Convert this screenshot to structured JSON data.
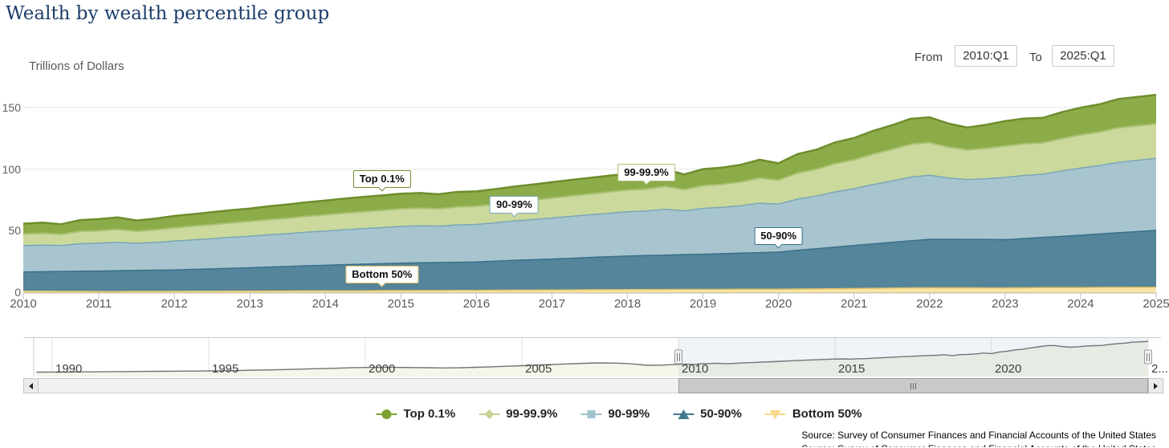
{
  "header": {
    "title": "Wealth by wealth percentile group"
  },
  "range_selector": {
    "from_label": "From",
    "from_value": "2010:Q1",
    "to_label": "To",
    "to_value": "2025:Q1"
  },
  "chart_data": {
    "type": "area",
    "stacked": true,
    "title": "Wealth by wealth percentile group",
    "ylabel": "Trillions of Dollars",
    "xlabel": "",
    "x_start": 2010.0,
    "x_step": 0.25,
    "x_ticks": [
      2010,
      2011,
      2012,
      2013,
      2014,
      2015,
      2016,
      2017,
      2018,
      2019,
      2020,
      2021,
      2022,
      2023,
      2024,
      2025
    ],
    "y_ticks": [
      0,
      50,
      100,
      150
    ],
    "ylim": [
      0,
      164
    ],
    "grid": "horizontal",
    "series": [
      {
        "name": "Bottom 50%",
        "color": "#f8e5a4",
        "line_color": "#e2c368",
        "line_width": 1.5,
        "values": [
          0.8,
          0.8,
          0.7,
          0.7,
          0.6,
          0.6,
          0.7,
          0.7,
          0.7,
          0.8,
          0.8,
          0.9,
          0.9,
          1.0,
          1.0,
          1.1,
          1.1,
          1.2,
          1.2,
          1.3,
          1.3,
          1.4,
          1.4,
          1.5,
          1.5,
          1.6,
          1.7,
          1.7,
          1.8,
          1.9,
          2.0,
          2.0,
          2.1,
          2.2,
          2.2,
          2.3,
          2.3,
          2.3,
          2.4,
          2.4,
          2.4,
          2.6,
          2.7,
          2.9,
          3.0,
          3.2,
          3.3,
          3.5,
          3.6,
          3.6,
          3.6,
          3.5,
          3.5,
          3.6,
          3.7,
          3.7,
          3.8,
          3.9,
          3.9,
          4.0,
          4.0
        ]
      },
      {
        "name": "50-90%",
        "color": "#54859a",
        "line_color": "#3a7089",
        "line_width": 1.5,
        "values": [
          15.7,
          15.9,
          16.2,
          16.4,
          16.6,
          16.8,
          17.0,
          17.2,
          17.4,
          17.8,
          18.2,
          18.6,
          19.0,
          19.5,
          19.9,
          20.4,
          20.8,
          21.2,
          21.6,
          21.9,
          22.3,
          22.5,
          22.7,
          22.9,
          23.1,
          23.6,
          24.2,
          24.7,
          25.2,
          25.7,
          26.3,
          26.8,
          27.3,
          27.6,
          28.0,
          28.3,
          28.6,
          29.0,
          29.4,
          29.8,
          30.2,
          31.4,
          32.6,
          33.8,
          35.0,
          36.1,
          37.2,
          38.3,
          39.4,
          39.4,
          39.3,
          39.3,
          39.2,
          40.0,
          40.9,
          41.7,
          42.5,
          43.4,
          44.4,
          45.3,
          46.2
        ]
      },
      {
        "name": "90-99%",
        "color": "#a8c5cf",
        "line_color": "#79a7b7",
        "line_width": 1.5,
        "values": [
          21.3,
          21.6,
          21.0,
          22.3,
          22.6,
          23.1,
          22.0,
          22.6,
          23.4,
          24.0,
          24.5,
          25.1,
          25.6,
          26.2,
          26.7,
          27.3,
          27.8,
          28.3,
          28.8,
          29.3,
          29.8,
          30.0,
          29.6,
          30.3,
          30.5,
          31.2,
          31.9,
          32.6,
          33.3,
          34.0,
          34.6,
          35.3,
          35.9,
          36.2,
          37.2,
          35.5,
          37.2,
          37.6,
          38.5,
          40.1,
          38.9,
          41.6,
          42.8,
          44.8,
          46.0,
          48.1,
          49.8,
          51.7,
          52.0,
          49.8,
          48.6,
          49.4,
          50.5,
          51.2,
          51.3,
          53.1,
          54.5,
          55.5,
          57.2,
          57.8,
          58.5
        ]
      },
      {
        "name": "99-99.9%",
        "color": "#cbd99d",
        "line_color": "#a9c171",
        "line_width": 2,
        "values": [
          9.4,
          9.6,
          9.1,
          10.0,
          10.2,
          10.6,
          9.8,
          10.2,
          10.8,
          11.1,
          11.4,
          11.7,
          12.0,
          12.3,
          12.6,
          12.9,
          13.2,
          13.5,
          13.8,
          14.0,
          14.3,
          14.4,
          14.1,
          14.6,
          14.7,
          15.1,
          15.5,
          15.8,
          16.2,
          16.6,
          16.9,
          17.3,
          17.6,
          17.8,
          18.5,
          17.2,
          18.4,
          18.7,
          19.3,
          20.4,
          19.5,
          21.2,
          21.7,
          23.0,
          23.5,
          24.7,
          25.6,
          26.7,
          26.5,
          25.0,
          24.0,
          24.6,
          25.5,
          25.7,
          25.4,
          26.3,
          27.0,
          27.3,
          28.0,
          28.0,
          28.0
        ]
      },
      {
        "name": "Top 0.1%",
        "color": "#8cac49",
        "line_color": "#6e8e2e",
        "line_width": 2.5,
        "values": [
          8.5,
          8.7,
          8.2,
          9.2,
          9.4,
          9.7,
          8.8,
          9.1,
          9.6,
          9.8,
          10.1,
          10.3,
          10.5,
          10.8,
          11.1,
          11.3,
          11.6,
          11.8,
          12.0,
          12.1,
          12.3,
          12.3,
          11.8,
          12.2,
          12.1,
          12.3,
          12.5,
          12.7,
          12.9,
          13.0,
          13.1,
          13.2,
          13.3,
          13.4,
          13.9,
          12.4,
          13.5,
          13.6,
          13.9,
          14.9,
          13.7,
          15.4,
          15.9,
          17.2,
          17.7,
          18.9,
          19.7,
          20.7,
          20.5,
          19.2,
          18.3,
          19.2,
          20.3,
          20.6,
          20.3,
          21.4,
          22.1,
          22.5,
          23.4,
          23.5,
          23.6
        ]
      }
    ],
    "annotations": [
      {
        "text": "Top 0.1%",
        "series_index": 4,
        "year": 2014.75
      },
      {
        "text": "90-99%",
        "series_index": 2,
        "year": 2016.5
      },
      {
        "text": "99-99.9%",
        "series_index": 3,
        "year": 2018.25
      },
      {
        "text": "50-90%",
        "series_index": 1,
        "year": 2020.0
      },
      {
        "text": "Bottom 50%",
        "series_index": 0,
        "year": 2014.75
      }
    ],
    "legend": {
      "position": "bottom",
      "items": [
        {
          "label": "Top 0.1%",
          "shape": "circle",
          "color": "#7da22f"
        },
        {
          "label": "99-99.9%",
          "shape": "diamond",
          "color": "#c3d294"
        },
        {
          "label": "90-99%",
          "shape": "square",
          "color": "#9fc2cc"
        },
        {
          "label": "50-90%",
          "shape": "triangle-up",
          "color": "#41798f"
        },
        {
          "label": "Bottom 50%",
          "shape": "triangle-down",
          "color": "#f6d98d"
        }
      ]
    }
  },
  "navigator": {
    "tick_years": [
      1990,
      1995,
      2000,
      2005,
      2010,
      2015,
      2020,
      2025
    ],
    "tick_labels": [
      "1990",
      "1995",
      "2000",
      "2005",
      "2010",
      "2015",
      "2020",
      "2..."
    ],
    "domain": [
      1989.5,
      2025.25
    ],
    "selection": {
      "from": 2010.0,
      "to": 2025.0
    },
    "history_x_start": 1989.5,
    "history_x_step": 0.5,
    "history_values": [
      20.0,
      20.4,
      20.7,
      21.2,
      21.8,
      22.3,
      22.8,
      23.3,
      23.9,
      24.4,
      24.9,
      25.8,
      26.8,
      28.0,
      29.2,
      30.6,
      32.3,
      34.0,
      35.8,
      37.8,
      39.8,
      41.5,
      42.0,
      41.8,
      41.0,
      40.2,
      39.2,
      40.0,
      42.0,
      44.5,
      47.0,
      49.5,
      52.5,
      55.5,
      58.0,
      60.5,
      62.5,
      61.5,
      58.0,
      51.5,
      52.5
    ],
    "line_color": "#737373",
    "area_color": "#f4f6ea",
    "selection_tint": "rgba(110,140,180,0.10)"
  },
  "source_text": "Source: Survey of Consumer Finances and Financial Accounts of the United States"
}
